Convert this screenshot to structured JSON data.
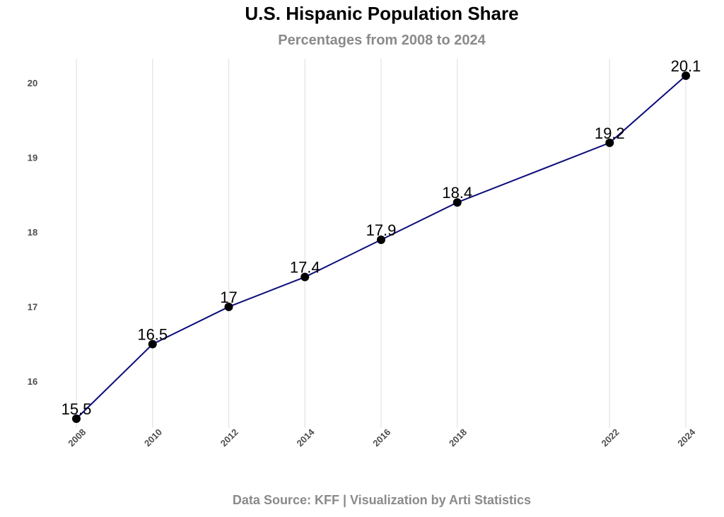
{
  "title": "U.S. Hispanic Population Share",
  "subtitle": "Percentages from 2008 to 2024",
  "caption": "Data Source: KFF | Visualization by Arti Statistics",
  "chart_data": {
    "type": "line",
    "title": "U.S. Hispanic Population Share",
    "subtitle": "Percentages from 2008 to 2024",
    "xlabel": "",
    "ylabel": "",
    "x": [
      2008,
      2010,
      2012,
      2014,
      2016,
      2018,
      2022,
      2024
    ],
    "x_tick_labels": [
      "2008",
      "2010",
      "2012",
      "2014",
      "2016",
      "2018",
      "2022",
      "2024"
    ],
    "series": [
      {
        "values": [
          15.5,
          16.5,
          17.0,
          17.4,
          17.9,
          18.4,
          19.2,
          20.1
        ],
        "labels": [
          "15.5",
          "16.5",
          "17",
          "17.4",
          "17.9",
          "18.4",
          "19.2",
          "20.1"
        ],
        "line_color": "#0d0d7a",
        "marker_color": "#000000"
      }
    ],
    "y_ticks": [
      16,
      17,
      18,
      19,
      20
    ],
    "y_tick_labels": [
      "16",
      "17",
      "18",
      "19",
      "20"
    ],
    "ylim": [
      15.5,
      20.1
    ],
    "xlim": [
      2008,
      2024
    ],
    "grid": "vertical",
    "legend": "none"
  }
}
